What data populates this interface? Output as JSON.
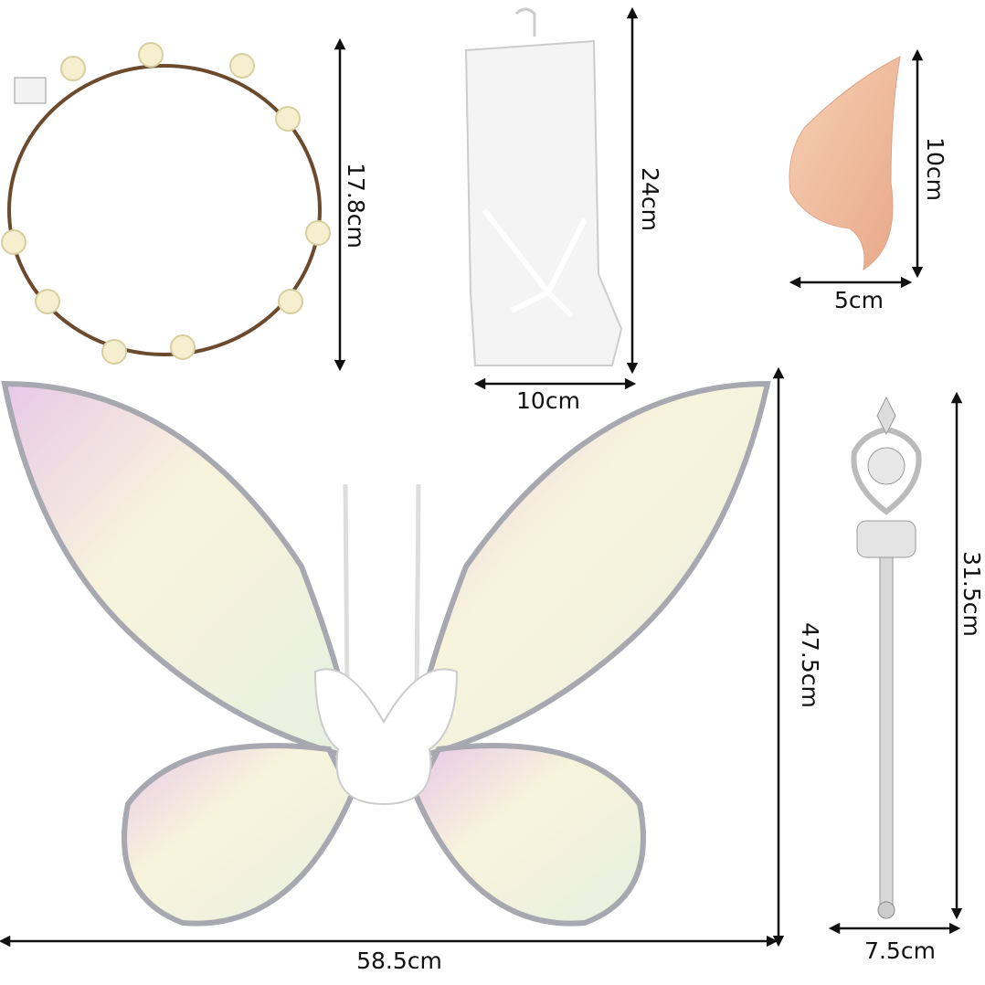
{
  "items": [
    {
      "height": "17.8cm"
    },
    {
      "height": "24cm",
      "width": "10cm"
    },
    {
      "height": "10cm",
      "width": "5cm"
    },
    {
      "height": "47.5cm",
      "width": "58.5cm"
    },
    {
      "height": "31.5cm",
      "width": "7.5cm"
    }
  ]
}
